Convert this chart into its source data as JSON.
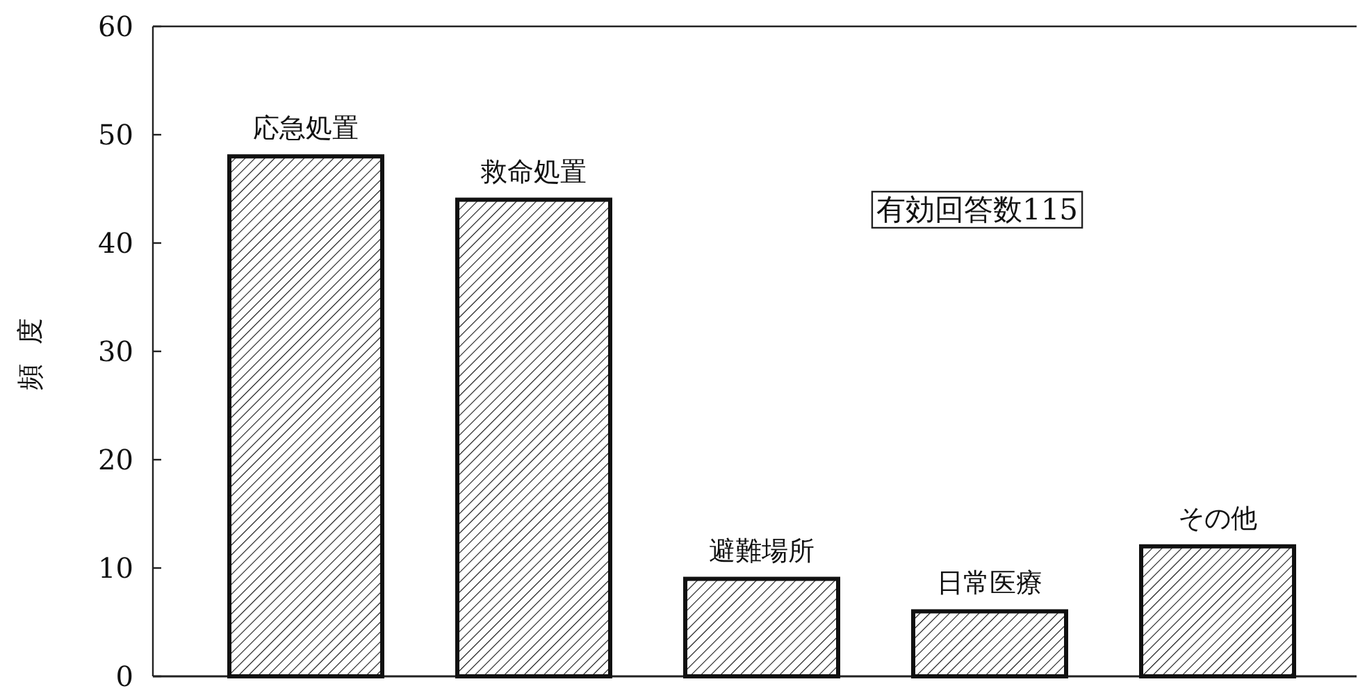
{
  "chart_data": {
    "type": "bar",
    "ylabel": "頻 度",
    "categories": [
      "応急処置",
      "救命処置",
      "避難場所",
      "日常医療",
      "その他"
    ],
    "values": [
      48,
      44,
      9,
      6,
      12
    ],
    "color": "#111111",
    "ylim": [
      0,
      60
    ],
    "yticks": [
      0,
      10,
      20,
      30,
      40,
      50,
      60
    ],
    "grid": false,
    "annotations": [
      "有効回答数115"
    ]
  }
}
